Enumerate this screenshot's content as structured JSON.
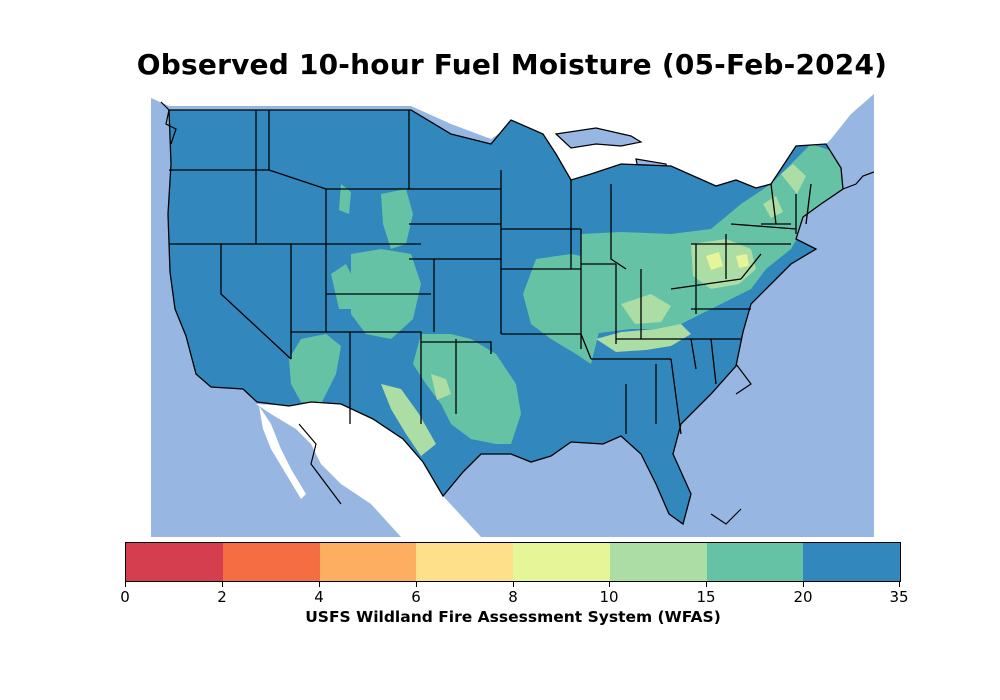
{
  "title": "Observed 10-hour Fuel Moisture (05-Feb-2024)",
  "colorbar": {
    "ticks": [
      "0",
      "2",
      "4",
      "6",
      "8",
      "10",
      "15",
      "20",
      "35"
    ],
    "colors": [
      "#d53e4f",
      "#f46d43",
      "#fdae61",
      "#fee08b",
      "#e6f598",
      "#abdda4",
      "#66c2a5",
      "#3288bd"
    ],
    "label": "USFS Wildland Fire Assessment System (WFAS)"
  },
  "map": {
    "water_color": "#97b6e1",
    "land_outside_color": "#ffffff",
    "border_color": "#000000",
    "dominant_class": "20-35"
  }
}
